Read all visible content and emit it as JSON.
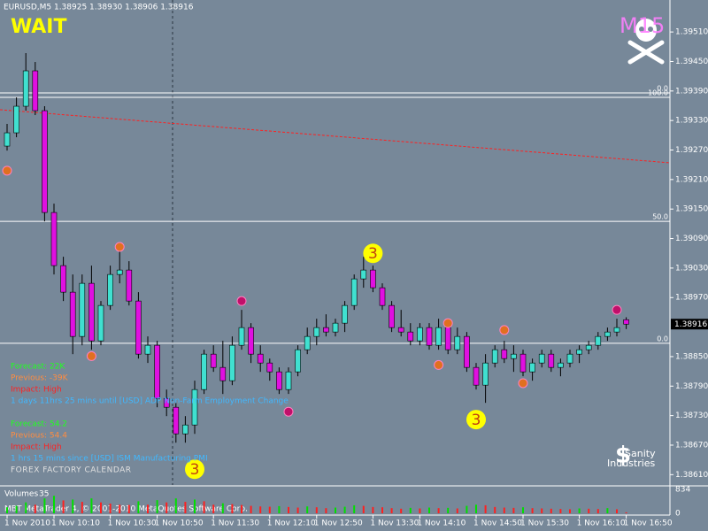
{
  "chart_data": {
    "type": "candlestick",
    "symbol_line": "EURUSD,M5  1.38925 1.38930 1.38906 1.38916",
    "status": "WAIT",
    "logo_top": "M15",
    "logo_symbol": "$",
    "logo_bottom": [
      "Sanity",
      "Industries"
    ],
    "bull_color": "#40e0d0",
    "bear_color": "#e010e0",
    "ylim": [
      1.38589,
      1.39575
    ],
    "yticks": [
      {
        "value": 1.3951,
        "label": "1.39510"
      },
      {
        "value": 1.3945,
        "label": "1.39450"
      },
      {
        "value": 1.3939,
        "label": "1.39390"
      },
      {
        "value": 1.3933,
        "label": "1.39330"
      },
      {
        "value": 1.3927,
        "label": "1.39270"
      },
      {
        "value": 1.3921,
        "label": "1.39210"
      },
      {
        "value": 1.3915,
        "label": "1.39150"
      },
      {
        "value": 1.3909,
        "label": "1.39090"
      },
      {
        "value": 1.3903,
        "label": "1.39030"
      },
      {
        "value": 1.3897,
        "label": "1.38970"
      },
      {
        "value": 1.3885,
        "label": "1.38850"
      },
      {
        "value": 1.3879,
        "label": "1.38790"
      },
      {
        "value": 1.3873,
        "label": "1.38730"
      },
      {
        "value": 1.3867,
        "label": "1.38670"
      },
      {
        "value": 1.3861,
        "label": "1.38610"
      }
    ],
    "categories": [
      "1 Nov 2010",
      null,
      null,
      null,
      null,
      "1 Nov 10:10",
      null,
      null,
      null,
      null,
      null,
      "1 Nov 10:30",
      null,
      null,
      null,
      null,
      "1 Nov 10:50",
      null,
      null,
      null,
      null,
      null,
      "1 Nov 11:30",
      null,
      null,
      null,
      null,
      null,
      "1 Nov 12:10",
      null,
      null,
      null,
      null,
      "1 Nov 12:50",
      null,
      null,
      null,
      null,
      null,
      "1 Nov 13:30",
      null,
      null,
      null,
      null,
      "1 Nov 14:10",
      null,
      null,
      null,
      null,
      null,
      "1 Nov 14:50",
      null,
      null,
      null,
      null,
      "1 Nov 15:30",
      null,
      null,
      null,
      null,
      null,
      "1 Nov 16:10",
      null,
      null,
      null,
      null,
      "1 Nov 16:50"
    ],
    "candles": [
      [
        1.39278,
        1.39323,
        1.39269,
        1.39305
      ],
      [
        1.39305,
        1.39377,
        1.39296,
        1.39359
      ],
      [
        1.39359,
        1.39467,
        1.3935,
        1.39431
      ],
      [
        1.39431,
        1.39449,
        1.39341,
        1.3935
      ],
      [
        1.3935,
        1.39359,
        1.39125,
        1.39143
      ],
      [
        1.39143,
        1.39161,
        1.39017,
        1.39035
      ],
      [
        1.39035,
        1.39053,
        1.38963,
        1.38981
      ],
      [
        1.38981,
        1.39017,
        1.38855,
        1.38891
      ],
      [
        1.38891,
        1.39017,
        1.38873,
        1.38999
      ],
      [
        1.38999,
        1.39035,
        1.38864,
        1.38882
      ],
      [
        1.38882,
        1.38963,
        1.38873,
        1.38954
      ],
      [
        1.38954,
        1.39035,
        1.38945,
        1.39017
      ],
      [
        1.39017,
        1.39071,
        1.38999,
        1.39026
      ],
      [
        1.39026,
        1.39044,
        1.38954,
        1.38963
      ],
      [
        1.38963,
        1.38981,
        1.38846,
        1.38855
      ],
      [
        1.38855,
        1.38891,
        1.38837,
        1.38873
      ],
      [
        1.38873,
        1.38882,
        1.38747,
        1.38765
      ],
      [
        1.38765,
        1.38783,
        1.38729,
        1.38747
      ],
      [
        1.38747,
        1.38756,
        1.38675,
        1.38693
      ],
      [
        1.38693,
        1.38729,
        1.38675,
        1.38711
      ],
      [
        1.38711,
        1.38801,
        1.38693,
        1.38783
      ],
      [
        1.38783,
        1.38864,
        1.38774,
        1.38855
      ],
      [
        1.38855,
        1.38873,
        1.38819,
        1.38828
      ],
      [
        1.38828,
        1.38882,
        1.38774,
        1.38801
      ],
      [
        1.38801,
        1.38891,
        1.38792,
        1.38873
      ],
      [
        1.38873,
        1.38945,
        1.38864,
        1.38909
      ],
      [
        1.38909,
        1.38918,
        1.38837,
        1.38855
      ],
      [
        1.38855,
        1.38873,
        1.38819,
        1.38837
      ],
      [
        1.38837,
        1.38846,
        1.38801,
        1.38819
      ],
      [
        1.38819,
        1.38828,
        1.38774,
        1.38783
      ],
      [
        1.38783,
        1.38828,
        1.38774,
        1.38819
      ],
      [
        1.38819,
        1.38873,
        1.3881,
        1.38864
      ],
      [
        1.38864,
        1.38909,
        1.38855,
        1.38891
      ],
      [
        1.38891,
        1.38927,
        1.38873,
        1.38909
      ],
      [
        1.38909,
        1.38936,
        1.38891,
        1.389
      ],
      [
        1.389,
        1.38927,
        1.38891,
        1.38918
      ],
      [
        1.38918,
        1.38963,
        1.389,
        1.38954
      ],
      [
        1.38954,
        1.39017,
        1.38945,
        1.39008
      ],
      [
        1.39008,
        1.39053,
        1.3899,
        1.39026
      ],
      [
        1.39026,
        1.39035,
        1.38981,
        1.3899
      ],
      [
        1.3899,
        1.38999,
        1.38945,
        1.38954
      ],
      [
        1.38954,
        1.38963,
        1.389,
        1.38909
      ],
      [
        1.38909,
        1.38945,
        1.38891,
        1.389
      ],
      [
        1.389,
        1.38918,
        1.38873,
        1.38882
      ],
      [
        1.38882,
        1.38918,
        1.38873,
        1.38909
      ],
      [
        1.38909,
        1.38918,
        1.38864,
        1.38873
      ],
      [
        1.38873,
        1.38927,
        1.38864,
        1.38909
      ],
      [
        1.38909,
        1.38918,
        1.38855,
        1.38864
      ],
      [
        1.38864,
        1.38909,
        1.38855,
        1.38891
      ],
      [
        1.38891,
        1.389,
        1.38819,
        1.38828
      ],
      [
        1.38828,
        1.38837,
        1.38783,
        1.38792
      ],
      [
        1.38792,
        1.38855,
        1.38756,
        1.38837
      ],
      [
        1.38837,
        1.38873,
        1.38828,
        1.38864
      ],
      [
        1.38864,
        1.38882,
        1.38837,
        1.38846
      ],
      [
        1.38846,
        1.38873,
        1.38819,
        1.38855
      ],
      [
        1.38855,
        1.38864,
        1.3881,
        1.38819
      ],
      [
        1.38819,
        1.38846,
        1.38801,
        1.38837
      ],
      [
        1.38837,
        1.38864,
        1.38828,
        1.38855
      ],
      [
        1.38855,
        1.38864,
        1.38819,
        1.38828
      ],
      [
        1.38828,
        1.38846,
        1.3881,
        1.38837
      ],
      [
        1.38837,
        1.38864,
        1.38828,
        1.38855
      ],
      [
        1.38855,
        1.38873,
        1.38837,
        1.38864
      ],
      [
        1.38864,
        1.38882,
        1.38855,
        1.38873
      ],
      [
        1.38873,
        1.389,
        1.38864,
        1.38891
      ],
      [
        1.38891,
        1.38909,
        1.38882,
        1.389
      ],
      [
        1.389,
        1.38927,
        1.38891,
        1.38909
      ],
      [
        1.38925,
        1.3893,
        1.38906,
        1.38916
      ]
    ],
    "orange_signals": {
      "color": "#e07020",
      "values": [
        1.39228,
        null,
        null,
        null,
        null,
        null,
        null,
        null,
        null,
        1.38851,
        null,
        null,
        1.39073,
        null,
        null,
        null,
        null,
        null,
        null,
        null,
        null,
        null,
        null,
        null,
        null,
        null,
        null,
        null,
        null,
        null,
        null,
        null,
        null,
        null,
        null,
        null,
        null,
        null,
        null,
        null,
        null,
        null,
        null,
        null,
        null,
        null,
        1.38833,
        1.38918,
        null,
        null,
        null,
        null,
        null,
        1.38904,
        null,
        1.38796,
        null,
        null,
        null,
        null,
        null,
        null,
        null,
        null,
        null,
        null,
        null
      ]
    },
    "magenta_signals": {
      "color": "#c0106a",
      "values": [
        null,
        null,
        null,
        null,
        null,
        null,
        null,
        null,
        null,
        null,
        null,
        null,
        null,
        null,
        null,
        null,
        null,
        null,
        null,
        null,
        null,
        null,
        null,
        null,
        null,
        1.38963,
        null,
        null,
        null,
        null,
        1.38738,
        null,
        null,
        null,
        null,
        null,
        null,
        null,
        null,
        null,
        null,
        null,
        null,
        null,
        null,
        null,
        null,
        null,
        null,
        null,
        null,
        null,
        null,
        null,
        null,
        null,
        null,
        null,
        null,
        null,
        null,
        null,
        null,
        null,
        null,
        1.38945,
        null
      ]
    },
    "count_labels": {
      "label": "3",
      "color": "#ffff00",
      "values": [
        null,
        null,
        null,
        null,
        null,
        null,
        null,
        null,
        null,
        null,
        null,
        null,
        null,
        null,
        null,
        null,
        null,
        null,
        null,
        null,
        1.38621,
        null,
        null,
        null,
        null,
        null,
        null,
        null,
        null,
        null,
        null,
        null,
        null,
        null,
        null,
        null,
        null,
        null,
        null,
        1.3906,
        null,
        null,
        null,
        null,
        null,
        null,
        null,
        null,
        null,
        null,
        1.38722,
        null,
        null,
        null,
        null,
        null,
        null,
        null,
        null,
        null,
        null,
        null,
        null,
        null,
        null,
        null,
        null
      ]
    },
    "levels": [
      {
        "label": "0.0",
        "value": 1.39386
      },
      {
        "label": "100.0",
        "value": 1.39377
      },
      {
        "label": "50.0",
        "value": 1.39125
      },
      {
        "label": "0.0",
        "value": 1.38877
      }
    ],
    "trendline": {
      "start": 1.39352,
      "end": 1.39244,
      "color": "#ff2020"
    },
    "calendar": [
      {
        "text": "Forecast: 22K",
        "color": "#20ff20"
      },
      {
        "text": "Previous: -39K",
        "color": "#ff8c40"
      },
      {
        "text": "Impact: High",
        "color": "#ff2020"
      },
      {
        "text": "1 days 11hrs 25 mins until [USD] ADP Non-Farm Employment Change",
        "color": "#40b8ff"
      },
      {
        "text": "Forecast: 54.2",
        "color": "#20ff20"
      },
      {
        "text": "Previous: 54.4",
        "color": "#ff8c40"
      },
      {
        "text": "Impact: High",
        "color": "#ff2020"
      },
      {
        "text": "1 hrs 15 mins since [USD] ISM Manufacturing PMI",
        "color": "#40b8ff"
      },
      {
        "text": "FOREX FACTORY CALENDAR",
        "color": "#e0e0e0"
      }
    ],
    "volume_title": "Volumes",
    "volume_up_color": "#00e000",
    "volume_down_color": "#ff2020",
    "volumes": [
      210,
      260,
      380,
      300,
      520,
      610,
      450,
      480,
      400,
      520,
      380,
      340,
      300,
      290,
      420,
      300,
      460,
      380,
      520,
      400,
      480,
      420,
      300,
      350,
      320,
      290,
      260,
      240,
      230,
      250,
      220,
      200,
      240,
      210,
      180,
      200,
      230,
      280,
      260,
      220,
      210,
      180,
      160,
      190,
      170,
      200,
      180,
      190,
      170,
      260,
      300,
      280,
      220,
      200,
      190,
      210,
      180,
      170,
      160,
      150,
      140,
      170,
      160,
      150,
      180,
      140,
      35
    ],
    "vlim": [
      0,
      834
    ],
    "vticks": [
      834,
      0
    ],
    "footer": "MBT MetaTrader 4, © 2001-2010 MetaQuotes Software Corp."
  }
}
